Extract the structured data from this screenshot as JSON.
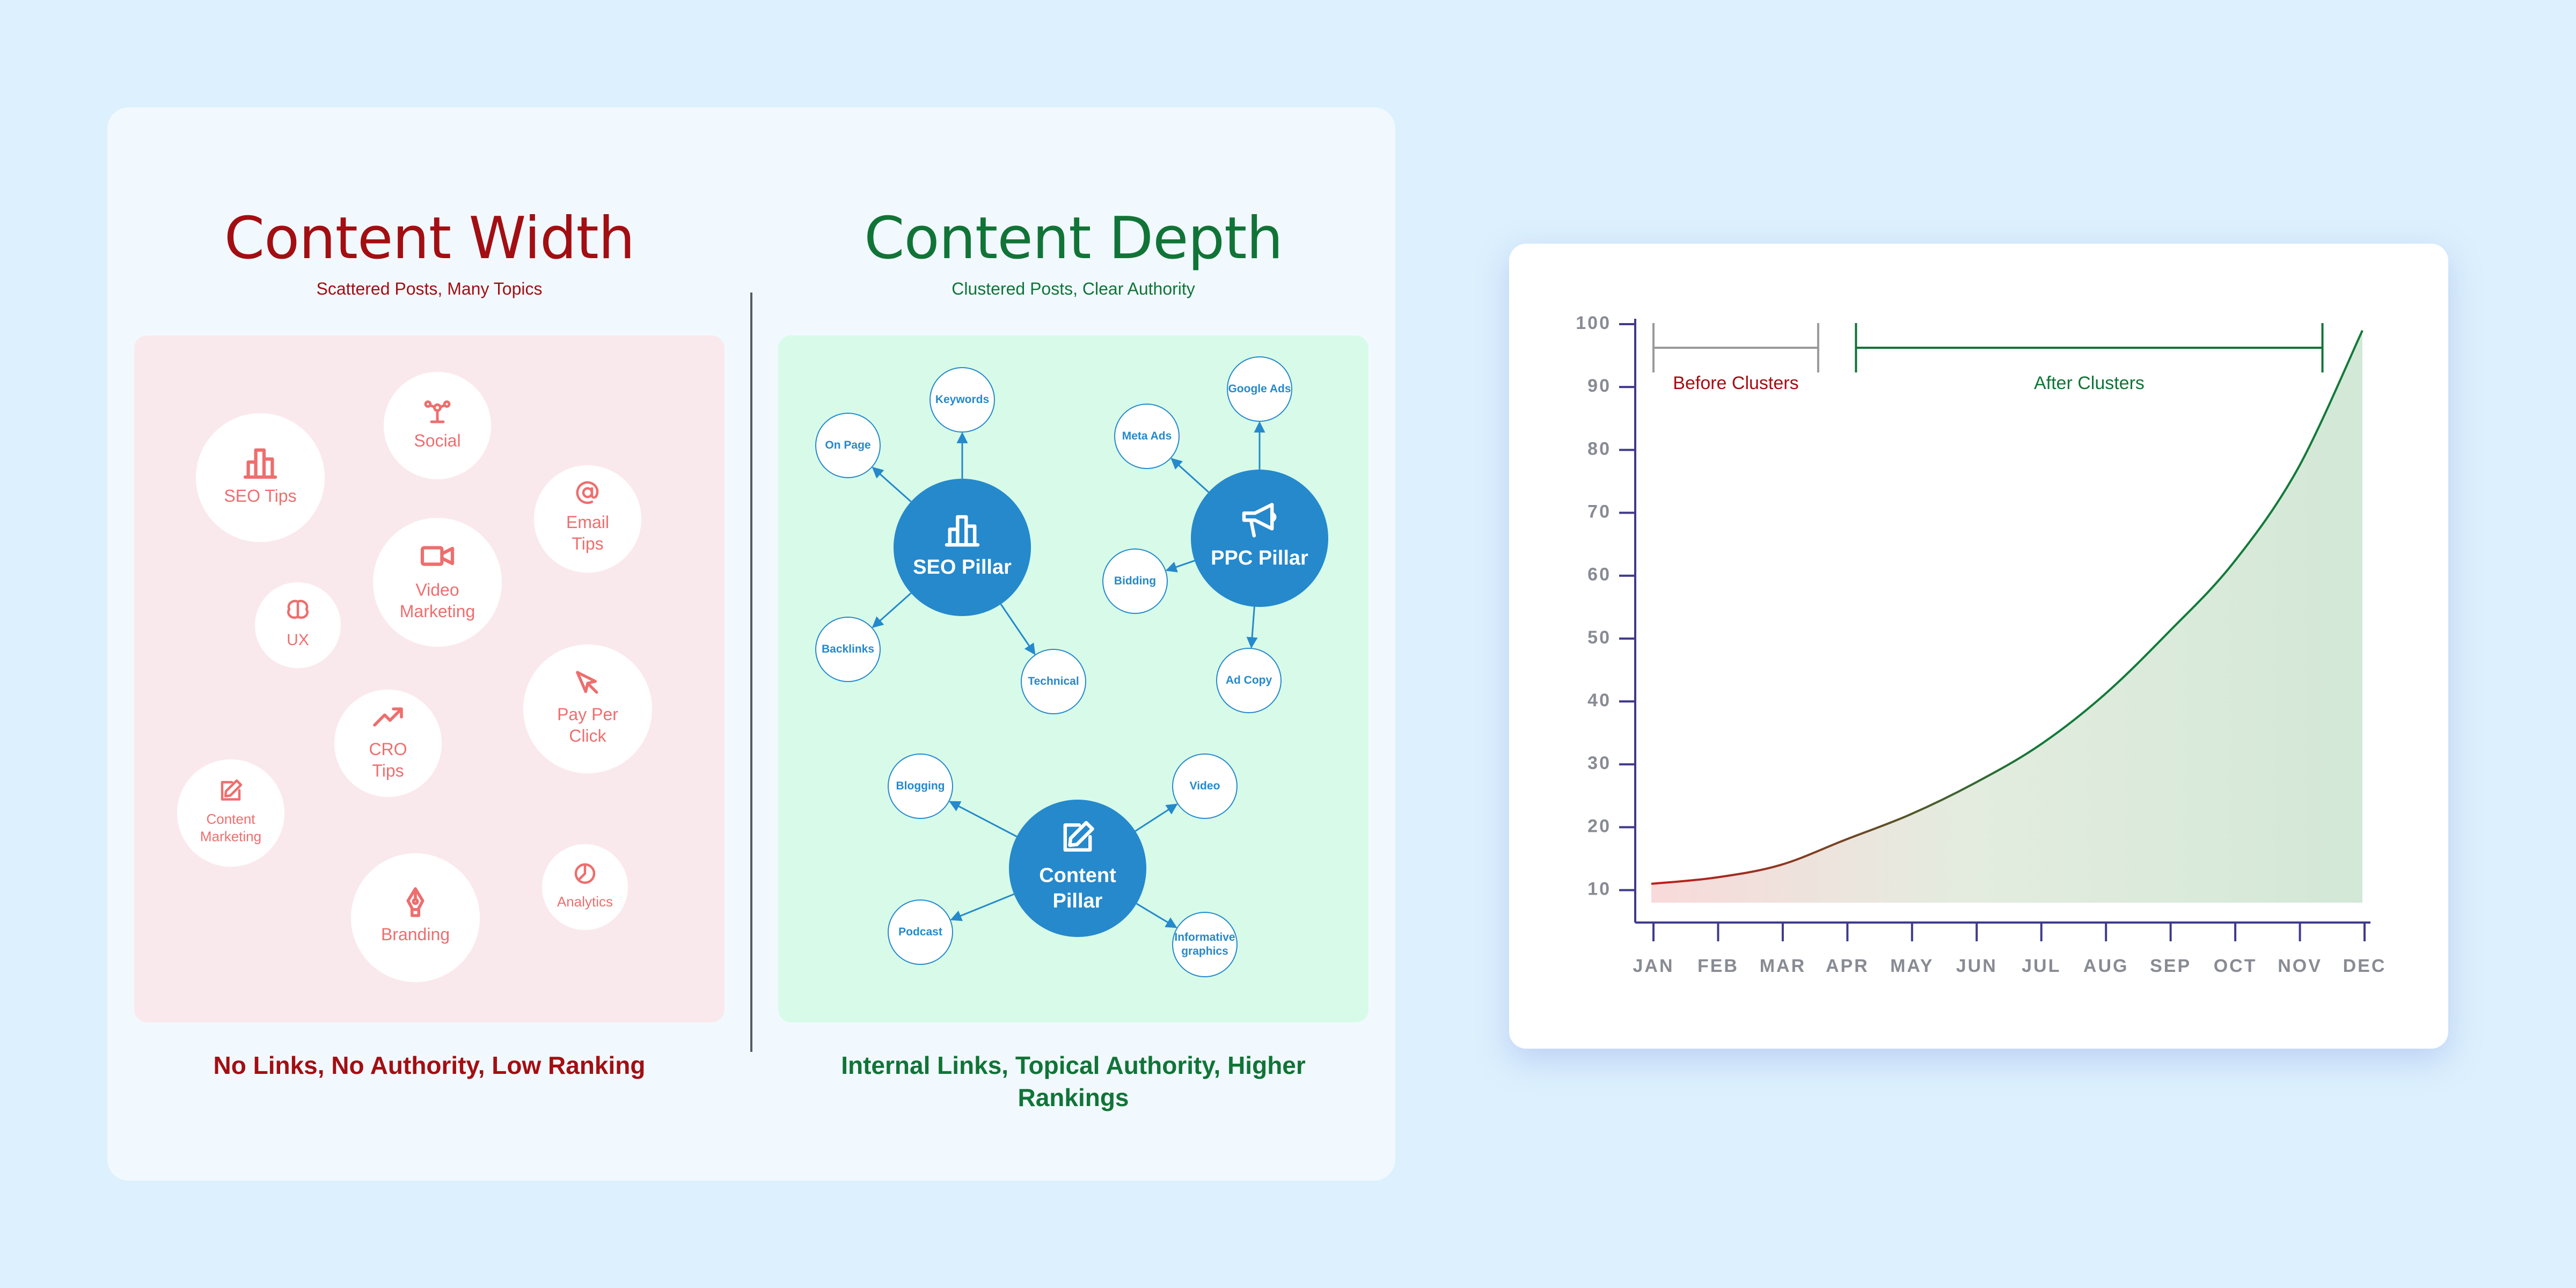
{
  "left": {
    "width": {
      "title": "Content Width",
      "subtitle": "Scattered Posts, Many Topics",
      "footer": "No Links, No Authority, Low Ranking",
      "topics": [
        {
          "label": "SEO Tips",
          "icon": "bar-chart-icon"
        },
        {
          "label": "Social",
          "icon": "network-icon"
        },
        {
          "label": "Email Tips",
          "icon": "at-icon"
        },
        {
          "label": "Video Marketing",
          "icon": "video-camera-icon"
        },
        {
          "label": "UX",
          "icon": "brain-icon"
        },
        {
          "label": "Pay Per Click",
          "icon": "cursor-icon"
        },
        {
          "label": "CRO Tips",
          "icon": "trend-up-icon"
        },
        {
          "label": "Content Marketing",
          "icon": "edit-icon"
        },
        {
          "label": "Analytics",
          "icon": "pie-chart-icon"
        },
        {
          "label": "Branding",
          "icon": "pen-nib-icon"
        }
      ]
    },
    "depth": {
      "title": "Content Depth",
      "subtitle": "Clustered Posts, Clear Authority",
      "footer": "Internal Links, Topical Authority, Higher Rankings",
      "pillars": [
        {
          "label": "SEO Pillar",
          "icon": "bar-chart-icon",
          "children": [
            "Keywords",
            "On Page",
            "Backlinks",
            "Technical"
          ]
        },
        {
          "label": "PPC Pillar",
          "icon": "megaphone-icon",
          "children": [
            "Google Ads",
            "Meta Ads",
            "Bidding",
            "Ad Copy"
          ]
        },
        {
          "label": "Content Pillar",
          "icon": "edit-icon",
          "children": [
            "Blogging",
            "Video",
            "Podcast",
            "Informative graphics"
          ]
        }
      ]
    }
  },
  "colors": {
    "red": "#a30e12",
    "green": "#117437",
    "topic_text": "#ee6e6e",
    "pillar_blue": "#2589cc",
    "axis": "#3f3a8c"
  },
  "chart_data": {
    "type": "area",
    "x": [
      "JAN",
      "FEB",
      "MAR",
      "APR",
      "MAY",
      "JUN",
      "JUL",
      "AUG",
      "SEP",
      "OCT",
      "NOV",
      "DEC"
    ],
    "y": [
      11,
      12,
      14,
      18,
      22,
      27,
      33,
      41,
      51,
      62,
      77,
      99
    ],
    "ylim": [
      8,
      100
    ],
    "yticks": [
      10,
      20,
      30,
      40,
      50,
      60,
      70,
      80,
      90,
      100
    ],
    "grid": false,
    "annotations": [
      {
        "label": "Before Clusters",
        "from": "JAN",
        "to": "MAR"
      },
      {
        "label": "After Clusters",
        "from": "APR",
        "to": "NOV"
      }
    ]
  }
}
